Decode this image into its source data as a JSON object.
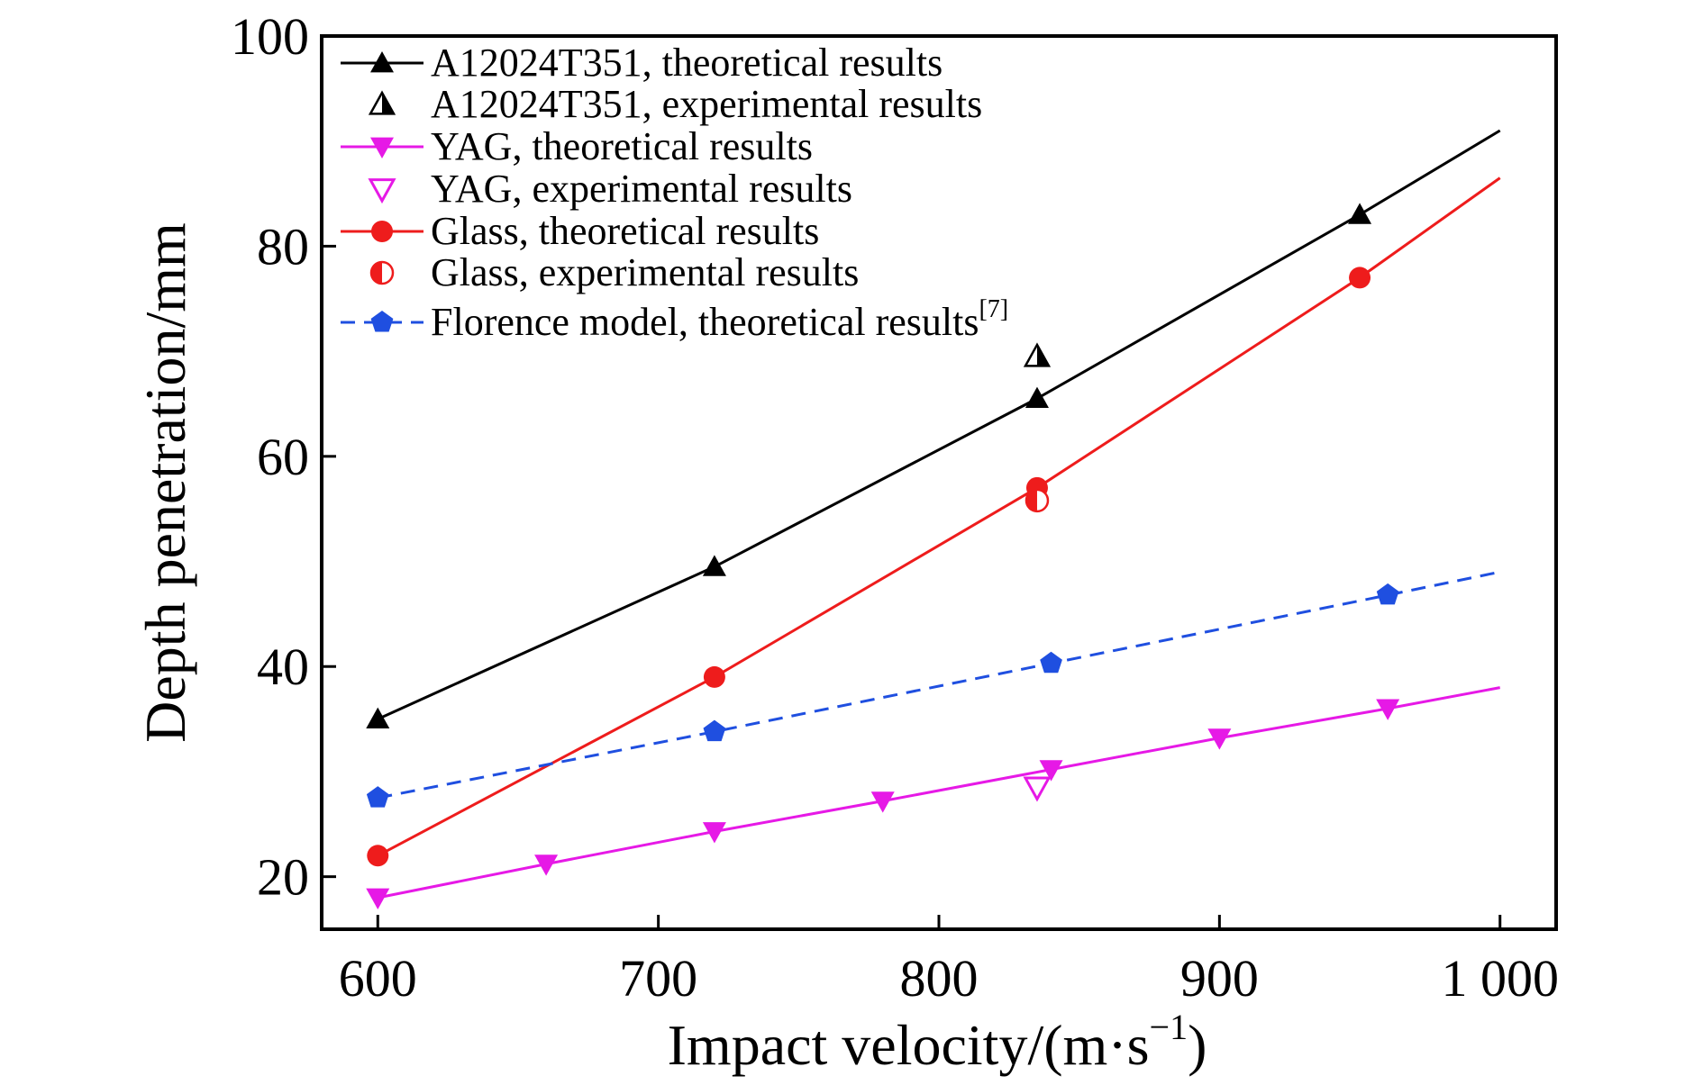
{
  "chart_data": {
    "type": "line",
    "xlabel": "Impact velocity/(m·s",
    "xlabel_sup": "−1",
    "xlabel_end": ")",
    "ylabel": "Depth penetration/mm",
    "xlim": [
      580,
      1020
    ],
    "ylim": [
      15,
      100
    ],
    "xticks": [
      600,
      700,
      800,
      900,
      1000
    ],
    "xtick_labels": [
      "600",
      "700",
      "800",
      "900",
      "1 000"
    ],
    "yticks": [
      20,
      40,
      60,
      80,
      100
    ],
    "ytick_labels": [
      "20",
      "40",
      "60",
      "80",
      "100"
    ],
    "grid": false,
    "legend_position": "top-left",
    "series": [
      {
        "name": "A12024T351, theoretical results",
        "kind": "line",
        "color": "#000000",
        "marker": "triangle-up",
        "dash": false,
        "x": [
          600,
          720,
          835,
          950,
          1000
        ],
        "y": [
          35,
          49.5,
          65.5,
          83,
          91
        ],
        "marker_x": [
          600,
          720,
          835,
          950
        ]
      },
      {
        "name": "A12024T351, experimental results",
        "kind": "scatter",
        "color": "#000000",
        "marker": "triangle-up-half",
        "x": [
          835
        ],
        "y": [
          69.5
        ]
      },
      {
        "name": "YAG, theoretical results",
        "kind": "line",
        "color": "#e619e6",
        "marker": "triangle-down",
        "dash": false,
        "x": [
          600,
          660,
          720,
          780,
          840,
          900,
          960,
          1000
        ],
        "y": [
          18,
          21.2,
          24.3,
          27.2,
          30.2,
          33.2,
          36,
          38
        ],
        "marker_x": [
          600,
          660,
          720,
          780,
          840,
          900,
          960
        ]
      },
      {
        "name": "YAG, experimental results",
        "kind": "scatter",
        "color": "#e619e6",
        "marker": "triangle-down-open",
        "x": [
          835
        ],
        "y": [
          28.5
        ]
      },
      {
        "name": "Glass, theoretical results",
        "kind": "line",
        "color": "#ee1c1c",
        "marker": "circle",
        "dash": false,
        "x": [
          600,
          720,
          835,
          950,
          1000
        ],
        "y": [
          22,
          39,
          57,
          77,
          86.5
        ],
        "marker_x": [
          600,
          720,
          835,
          950
        ]
      },
      {
        "name": "Glass, experimental results",
        "kind": "scatter",
        "color": "#ee1c1c",
        "marker": "circle-half",
        "x": [
          835
        ],
        "y": [
          55.8
        ]
      },
      {
        "name": "Florence model, theoretical results",
        "name_sup": "[7]",
        "kind": "line",
        "color": "#1f4fe0",
        "marker": "pentagon",
        "dash": true,
        "x": [
          600,
          720,
          840,
          960,
          1000
        ],
        "y": [
          27.5,
          33.8,
          40.3,
          46.8,
          49
        ],
        "marker_x": [
          600,
          720,
          840,
          960
        ]
      }
    ]
  }
}
